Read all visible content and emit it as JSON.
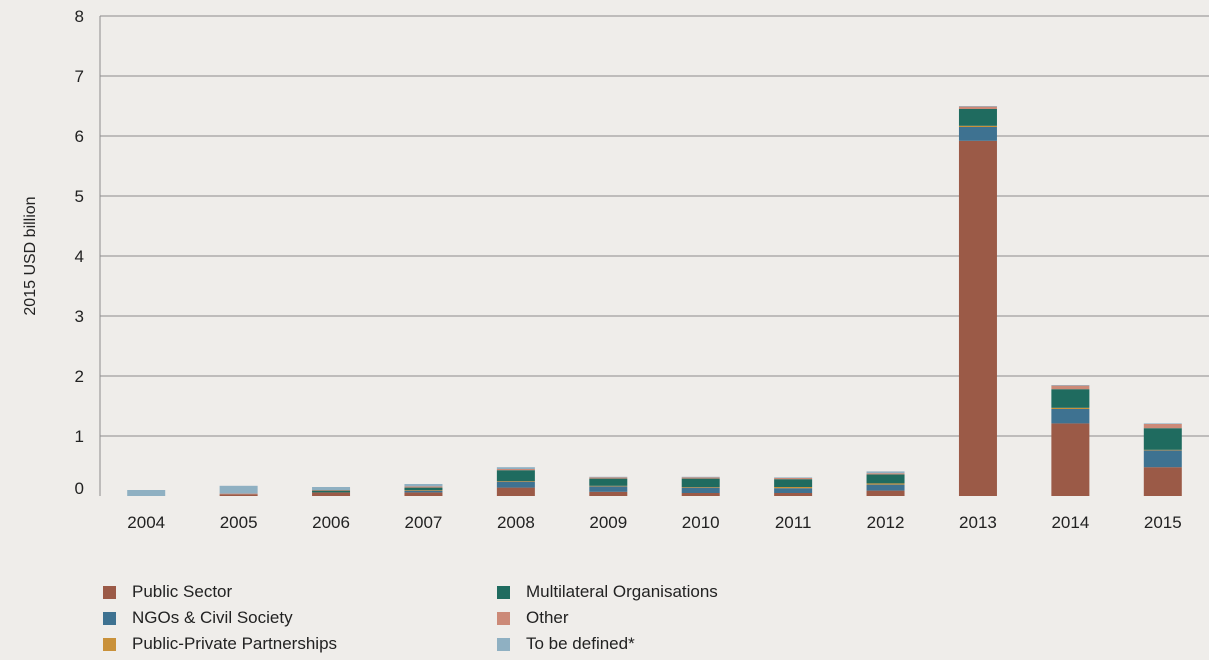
{
  "chart_data": {
    "type": "bar",
    "stacked": true,
    "ylabel": "2015 USD billion",
    "ylim": [
      0,
      8
    ],
    "yticks": [
      "0",
      "1",
      "2",
      "3",
      "4",
      "5",
      "6",
      "7",
      "8"
    ],
    "grid": true,
    "legend_position": "bottom",
    "categories": [
      "2004",
      "2005",
      "2006",
      "2007",
      "2008",
      "2009",
      "2010",
      "2011",
      "2012",
      "2013",
      "2014",
      "2015"
    ],
    "series": [
      {
        "name": "Public Sector",
        "color": "#9b5a47",
        "values": [
          0.0,
          0.03,
          0.06,
          0.06,
          0.14,
          0.07,
          0.05,
          0.05,
          0.09,
          5.92,
          1.21,
          0.48
        ]
      },
      {
        "name": "NGOs & Civil Society",
        "color": "#3e7291",
        "values": [
          0.0,
          0.0,
          0.0,
          0.03,
          0.1,
          0.09,
          0.09,
          0.08,
          0.1,
          0.23,
          0.24,
          0.28
        ]
      },
      {
        "name": "Public-Private Partnerships",
        "color": "#c9913a",
        "values": [
          0.0,
          0.0,
          0.0,
          0.01,
          0.01,
          0.01,
          0.01,
          0.02,
          0.02,
          0.02,
          0.02,
          0.01
        ]
      },
      {
        "name": "Multilateral Organisations",
        "color": "#1f6b5f",
        "values": [
          0.0,
          0.0,
          0.03,
          0.04,
          0.18,
          0.12,
          0.14,
          0.13,
          0.15,
          0.28,
          0.31,
          0.36
        ]
      },
      {
        "name": "Other",
        "color": "#cc8a78",
        "values": [
          0.0,
          0.01,
          0.01,
          0.02,
          0.02,
          0.02,
          0.02,
          0.02,
          0.02,
          0.04,
          0.06,
          0.07
        ]
      },
      {
        "name": "To be defined*",
        "color": "#8fb0c2",
        "values": [
          0.1,
          0.13,
          0.05,
          0.04,
          0.03,
          0.01,
          0.01,
          0.01,
          0.03,
          0.01,
          0.01,
          0.01
        ]
      }
    ]
  }
}
